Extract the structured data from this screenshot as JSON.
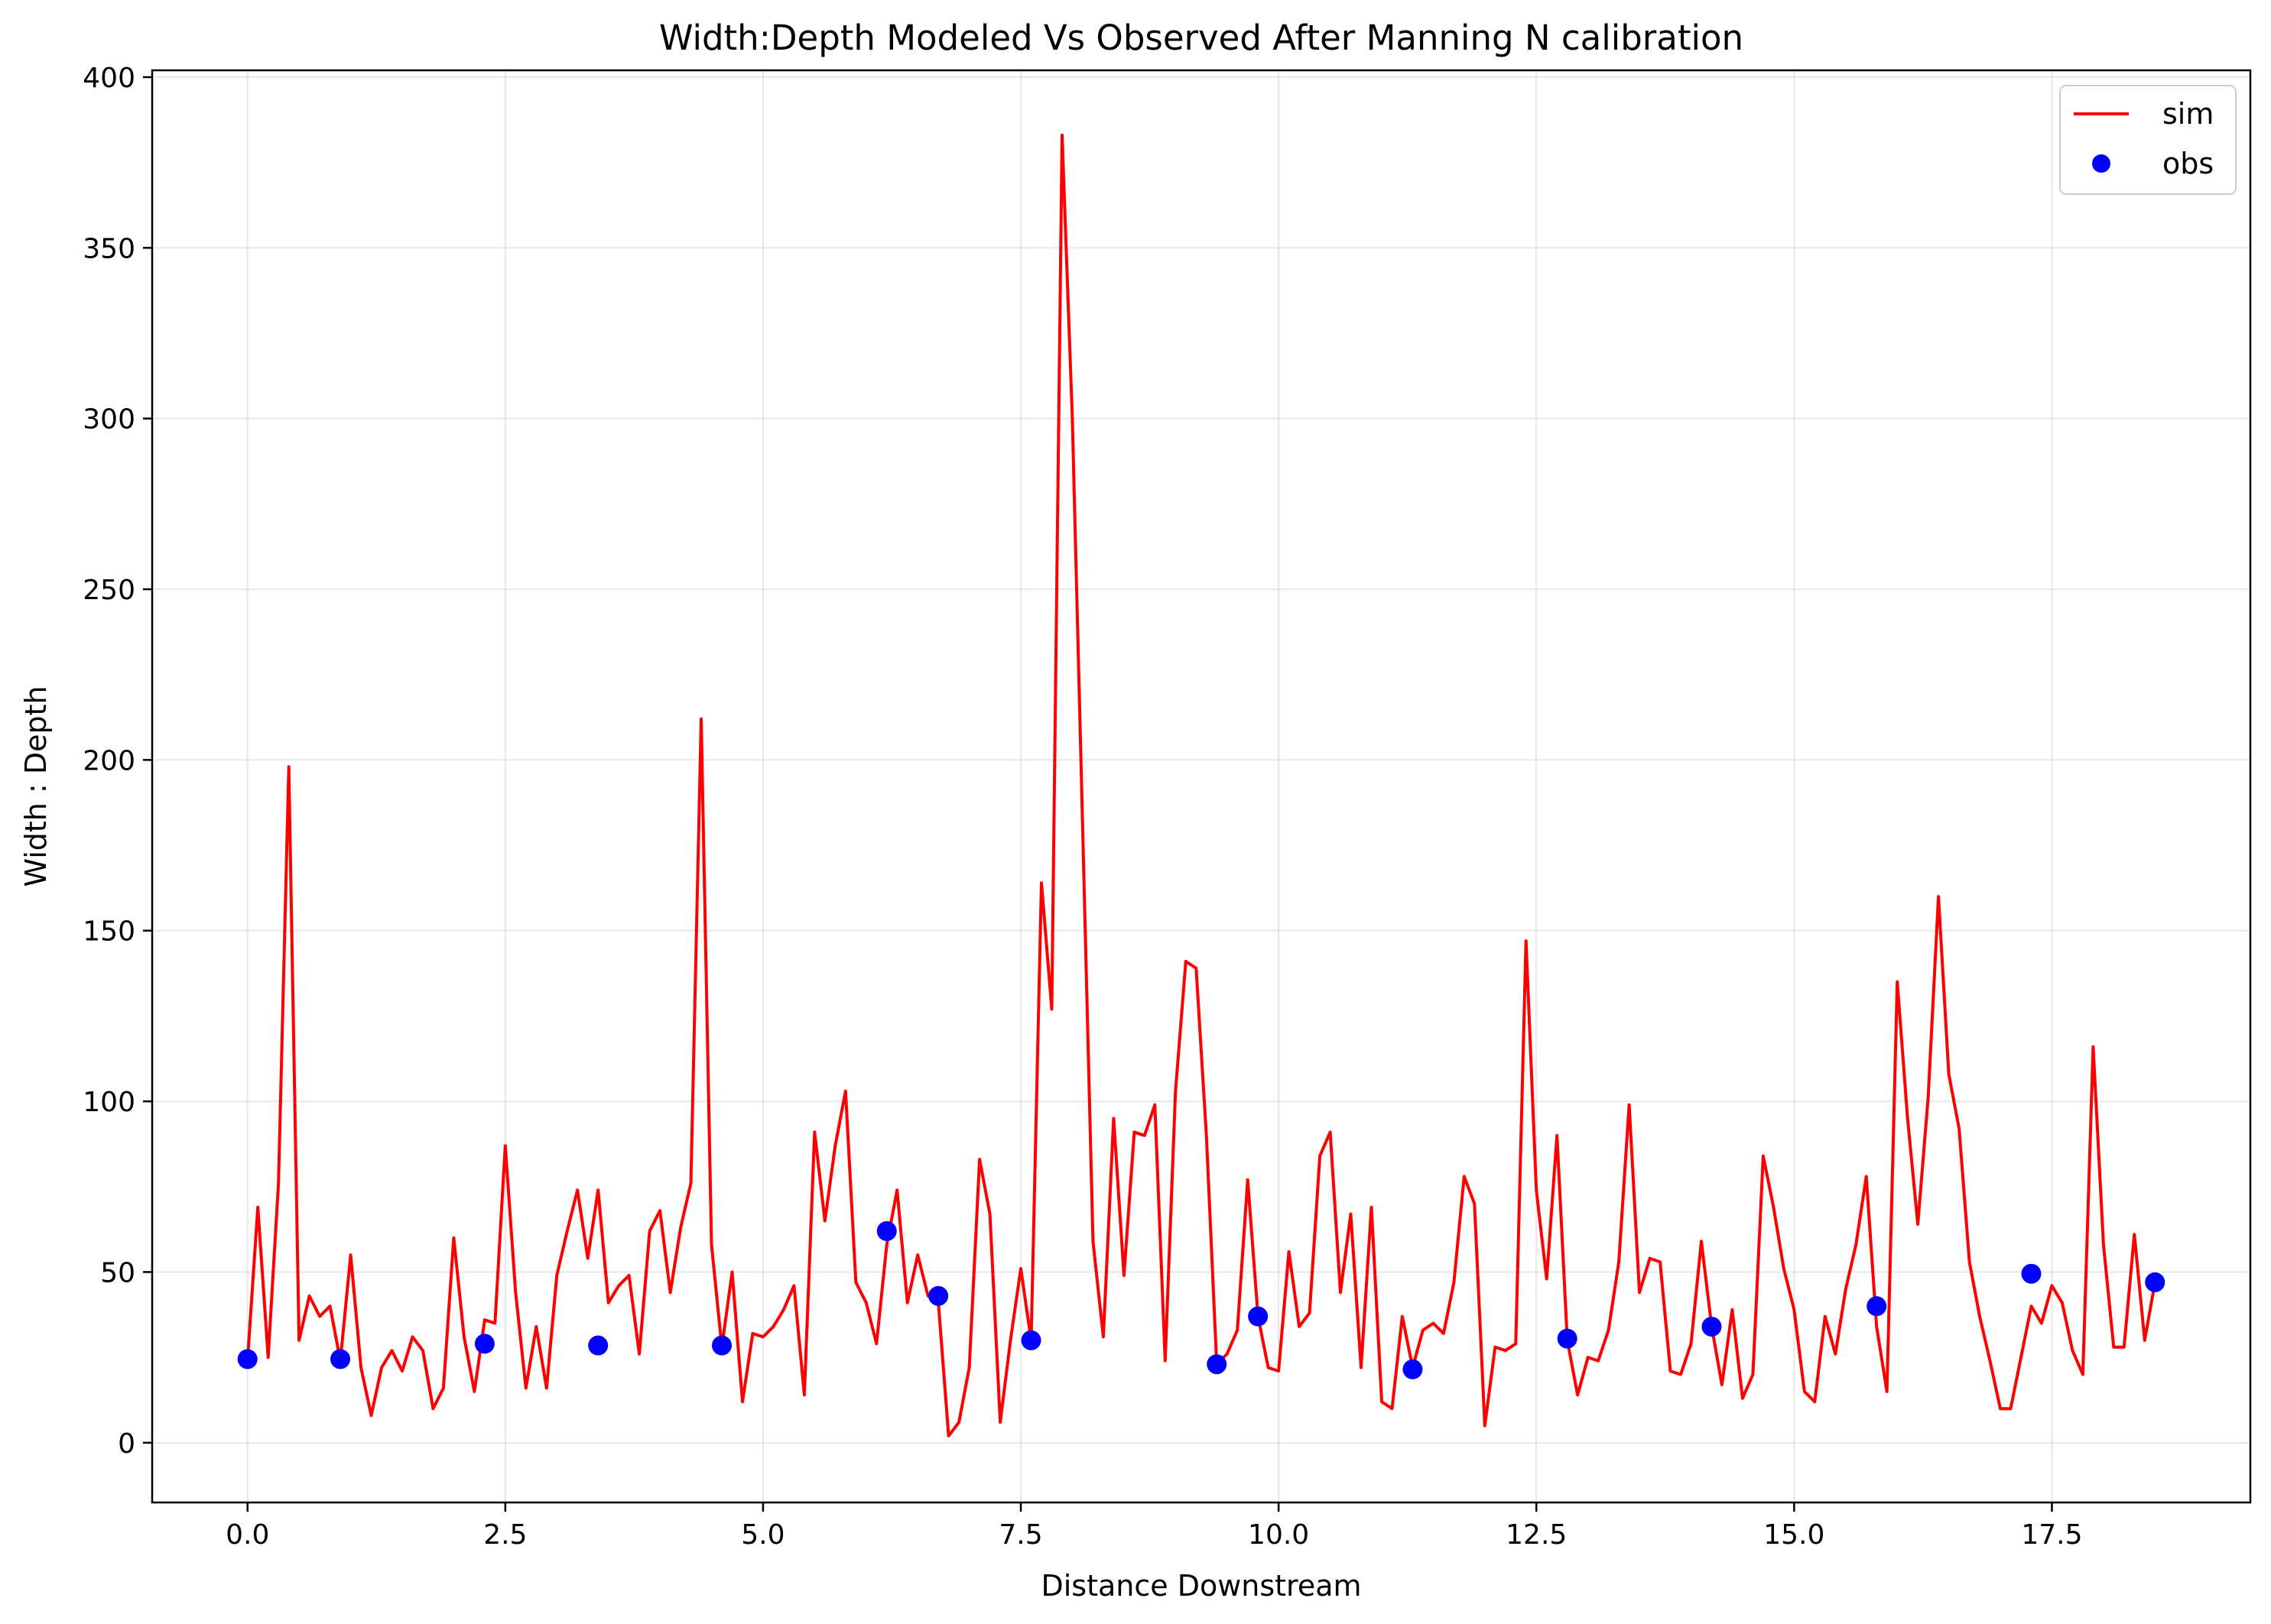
{
  "chart_data": {
    "type": "line",
    "title": "Width:Depth Modeled Vs Observed After Manning N calibration",
    "xlabel": "Distance Downstream",
    "ylabel": "Width : Depth",
    "xlim": [
      -0.925,
      19.425
    ],
    "ylim": [
      -17.5,
      402
    ],
    "xticks": [
      0.0,
      2.5,
      5.0,
      7.5,
      10.0,
      12.5,
      15.0,
      17.5
    ],
    "xtick_labels": [
      "0.0",
      "2.5",
      "5.0",
      "7.5",
      "10.0",
      "12.5",
      "15.0",
      "17.5"
    ],
    "yticks": [
      0,
      50,
      100,
      150,
      200,
      250,
      300,
      350,
      400
    ],
    "ytick_labels": [
      "0",
      "50",
      "100",
      "150",
      "200",
      "250",
      "300",
      "350",
      "400"
    ],
    "grid": true,
    "legend_position": "top-right",
    "colors": {
      "sim": "#ff0000",
      "obs": "#0000ff"
    },
    "series": [
      {
        "name": "sim",
        "type": "line",
        "x": [
          0.0,
          0.1,
          0.2,
          0.3,
          0.4,
          0.5,
          0.6,
          0.7,
          0.8,
          0.9,
          1.0,
          1.1,
          1.2,
          1.3,
          1.4,
          1.5,
          1.6,
          1.7,
          1.8,
          1.9,
          2.0,
          2.1,
          2.2,
          2.3,
          2.4,
          2.5,
          2.6,
          2.7,
          2.8,
          2.9,
          3.0,
          3.1,
          3.2,
          3.3,
          3.4,
          3.5,
          3.6,
          3.7,
          3.8,
          3.9,
          4.0,
          4.1,
          4.2,
          4.3,
          4.4,
          4.5,
          4.6,
          4.7,
          4.8,
          4.9,
          5.0,
          5.1,
          5.2,
          5.3,
          5.4,
          5.5,
          5.6,
          5.7,
          5.8,
          5.9,
          6.0,
          6.1,
          6.2,
          6.3,
          6.4,
          6.5,
          6.6,
          6.7,
          6.8,
          6.9,
          7.0,
          7.1,
          7.2,
          7.3,
          7.4,
          7.5,
          7.6,
          7.7,
          7.8,
          7.9,
          8.0,
          8.1,
          8.2,
          8.3,
          8.4,
          8.5,
          8.6,
          8.7,
          8.8,
          8.9,
          9.0,
          9.1,
          9.2,
          9.3,
          9.4,
          9.5,
          9.6,
          9.7,
          9.8,
          9.9,
          10.0,
          10.1,
          10.2,
          10.3,
          10.4,
          10.5,
          10.6,
          10.7,
          10.8,
          10.9,
          11.0,
          11.1,
          11.2,
          11.3,
          11.4,
          11.5,
          11.6,
          11.7,
          11.8,
          11.9,
          12.0,
          12.1,
          12.2,
          12.3,
          12.4,
          12.5,
          12.6,
          12.7,
          12.8,
          12.9,
          13.0,
          13.1,
          13.2,
          13.3,
          13.4,
          13.5,
          13.6,
          13.7,
          13.8,
          13.9,
          14.0,
          14.1,
          14.2,
          14.3,
          14.4,
          14.5,
          14.6,
          14.7,
          14.8,
          14.9,
          15.0,
          15.1,
          15.2,
          15.3,
          15.4,
          15.5,
          15.6,
          15.7,
          15.8,
          15.9,
          16.0,
          16.1,
          16.2,
          16.3,
          16.4,
          16.5,
          16.6,
          16.7,
          16.8,
          16.9,
          17.0,
          17.1,
          17.2,
          17.3,
          17.4,
          17.5,
          17.6,
          17.7,
          17.8,
          17.9,
          18.0,
          18.1,
          18.2,
          18.3,
          18.4,
          18.5
        ],
        "y": [
          24,
          69,
          25,
          76,
          198,
          30,
          43,
          37,
          40,
          24,
          55,
          22,
          8,
          22,
          27,
          21,
          31,
          27,
          10,
          16,
          60,
          31,
          15,
          36,
          35,
          87,
          44,
          16,
          34,
          16,
          49,
          62,
          74,
          54,
          74,
          41,
          46,
          49,
          26,
          62,
          68,
          44,
          63,
          76,
          212,
          58,
          28,
          50,
          12,
          32,
          31,
          34,
          39,
          46,
          14,
          91,
          65,
          87,
          103,
          47,
          41,
          29,
          58,
          74,
          41,
          55,
          43,
          41,
          2,
          6,
          22,
          83,
          67,
          6,
          30,
          51,
          30,
          164,
          127,
          383,
          300,
          180,
          59,
          31,
          95,
          49,
          91,
          90,
          99,
          24,
          103,
          141,
          139,
          90,
          23,
          26,
          33,
          77,
          37,
          22,
          21,
          56,
          34,
          38,
          84,
          91,
          44,
          67,
          22,
          69,
          12,
          10,
          37,
          22,
          33,
          35,
          32,
          47,
          78,
          70,
          5,
          28,
          27,
          29,
          147,
          74,
          48,
          90,
          30,
          14,
          25,
          24,
          33,
          53,
          99,
          44,
          54,
          53,
          21,
          20,
          29,
          59,
          34,
          17,
          39,
          13,
          20,
          84,
          69,
          51,
          39,
          15,
          12,
          37,
          26,
          45,
          58,
          78,
          34,
          15,
          135,
          95,
          64,
          101,
          160,
          108,
          92,
          53,
          37,
          24,
          10,
          10,
          25,
          40,
          35,
          46,
          41,
          27,
          20,
          116,
          58,
          28,
          28,
          61,
          30,
          47
        ]
      },
      {
        "name": "obs",
        "type": "scatter",
        "x": [
          0.0,
          0.9,
          2.3,
          3.4,
          4.6,
          6.2,
          6.7,
          7.6,
          9.4,
          9.8,
          11.3,
          12.8,
          14.2,
          15.8,
          17.3,
          18.5
        ],
        "y": [
          24.5,
          24.5,
          29,
          28.5,
          28.5,
          62,
          43,
          30,
          23,
          37,
          21.5,
          30.5,
          34,
          40,
          49.5,
          47
        ]
      }
    ]
  }
}
